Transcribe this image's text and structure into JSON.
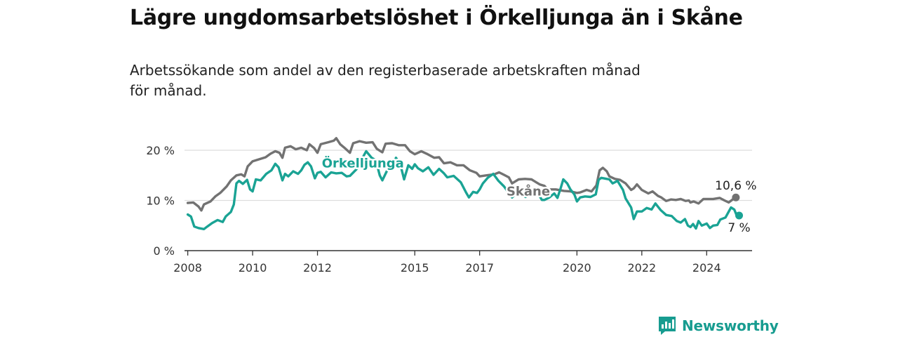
{
  "title": "Lägre ungdomsarbetslöshet i Örkelljunga än i Skåne",
  "subtitle": "Arbetssökande som andel av den registerbaserade arbetskraften månad för månad.",
  "brand": "Newsworthy",
  "colors": {
    "orkelljunga": "#1aa394",
    "skane": "#727272",
    "grid": "#dddddd",
    "axis": "#333333"
  },
  "chart_data": {
    "type": "line",
    "ylim": [
      0,
      20
    ],
    "xlim": [
      2007.9,
      2025.4
    ],
    "y_ticks": [
      {
        "v": 0,
        "label": "0 %"
      },
      {
        "v": 10,
        "label": "10 %"
      },
      {
        "v": 20,
        "label": "20 %"
      }
    ],
    "x_ticks": [
      {
        "v": 2008,
        "label": "2008"
      },
      {
        "v": 2010,
        "label": "2010"
      },
      {
        "v": 2012,
        "label": "2012"
      },
      {
        "v": 2015,
        "label": "2015"
      },
      {
        "v": 2017,
        "label": "2017"
      },
      {
        "v": 2020,
        "label": "2020"
      },
      {
        "v": 2022,
        "label": "2022"
      },
      {
        "v": 2024,
        "label": "2024"
      }
    ],
    "series": [
      {
        "key": "skane",
        "name": "Skåne",
        "label_at": [
          2018.5,
          11.8
        ],
        "end_label": "10,6 %",
        "points": [
          [
            2008.0,
            9.5
          ],
          [
            2008.17,
            9.6
          ],
          [
            2008.33,
            8.8
          ],
          [
            2008.42,
            8.0
          ],
          [
            2008.5,
            9.2
          ],
          [
            2008.7,
            9.8
          ],
          [
            2008.85,
            10.8
          ],
          [
            2009.0,
            11.5
          ],
          [
            2009.2,
            12.8
          ],
          [
            2009.33,
            14.0
          ],
          [
            2009.5,
            15.0
          ],
          [
            2009.65,
            15.2
          ],
          [
            2009.75,
            14.8
          ],
          [
            2009.85,
            16.8
          ],
          [
            2010.0,
            17.8
          ],
          [
            2010.2,
            18.2
          ],
          [
            2010.4,
            18.6
          ],
          [
            2010.55,
            19.3
          ],
          [
            2010.7,
            19.8
          ],
          [
            2010.83,
            19.5
          ],
          [
            2010.92,
            18.5
          ],
          [
            2011.0,
            20.5
          ],
          [
            2011.17,
            20.8
          ],
          [
            2011.33,
            20.2
          ],
          [
            2011.5,
            20.5
          ],
          [
            2011.67,
            20.0
          ],
          [
            2011.75,
            21.2
          ],
          [
            2011.9,
            20.4
          ],
          [
            2012.0,
            19.5
          ],
          [
            2012.1,
            21.2
          ],
          [
            2012.33,
            21.6
          ],
          [
            2012.5,
            21.9
          ],
          [
            2012.58,
            22.4
          ],
          [
            2012.7,
            21.2
          ],
          [
            2012.83,
            20.5
          ],
          [
            2013.0,
            19.5
          ],
          [
            2013.1,
            21.4
          ],
          [
            2013.3,
            21.8
          ],
          [
            2013.5,
            21.5
          ],
          [
            2013.7,
            21.6
          ],
          [
            2013.83,
            20.3
          ],
          [
            2014.0,
            19.6
          ],
          [
            2014.1,
            21.3
          ],
          [
            2014.3,
            21.4
          ],
          [
            2014.5,
            21.0
          ],
          [
            2014.7,
            21.0
          ],
          [
            2014.85,
            19.8
          ],
          [
            2015.0,
            19.2
          ],
          [
            2015.2,
            19.8
          ],
          [
            2015.4,
            19.2
          ],
          [
            2015.6,
            18.5
          ],
          [
            2015.75,
            18.6
          ],
          [
            2015.9,
            17.4
          ],
          [
            2016.1,
            17.6
          ],
          [
            2016.3,
            17.0
          ],
          [
            2016.5,
            17.0
          ],
          [
            2016.7,
            16.0
          ],
          [
            2016.9,
            15.5
          ],
          [
            2017.0,
            14.8
          ],
          [
            2017.2,
            15.0
          ],
          [
            2017.45,
            15.2
          ],
          [
            2017.6,
            15.6
          ],
          [
            2017.75,
            15.1
          ],
          [
            2017.9,
            14.6
          ],
          [
            2018.0,
            13.4
          ],
          [
            2018.2,
            14.2
          ],
          [
            2018.4,
            14.3
          ],
          [
            2018.6,
            14.2
          ],
          [
            2018.75,
            13.6
          ],
          [
            2018.85,
            13.2
          ],
          [
            2019.0,
            12.9
          ],
          [
            2019.1,
            12.2
          ],
          [
            2019.35,
            12.2
          ],
          [
            2019.6,
            11.9
          ],
          [
            2019.8,
            11.8
          ],
          [
            2020.0,
            11.5
          ],
          [
            2020.1,
            11.6
          ],
          [
            2020.3,
            12.1
          ],
          [
            2020.45,
            11.8
          ],
          [
            2020.6,
            13.0
          ],
          [
            2020.7,
            16.0
          ],
          [
            2020.8,
            16.5
          ],
          [
            2020.92,
            15.8
          ],
          [
            2021.0,
            14.8
          ],
          [
            2021.17,
            14.3
          ],
          [
            2021.33,
            14.1
          ],
          [
            2021.5,
            13.4
          ],
          [
            2021.67,
            12.1
          ],
          [
            2021.75,
            12.4
          ],
          [
            2021.85,
            13.2
          ],
          [
            2022.0,
            12.1
          ],
          [
            2022.2,
            11.4
          ],
          [
            2022.33,
            11.8
          ],
          [
            2022.5,
            10.9
          ],
          [
            2022.6,
            10.6
          ],
          [
            2022.75,
            9.9
          ],
          [
            2022.9,
            10.2
          ],
          [
            2023.05,
            10.1
          ],
          [
            2023.2,
            10.3
          ],
          [
            2023.35,
            9.9
          ],
          [
            2023.45,
            10.0
          ],
          [
            2023.5,
            9.6
          ],
          [
            2023.6,
            9.8
          ],
          [
            2023.75,
            9.4
          ],
          [
            2023.9,
            10.3
          ],
          [
            2024.0,
            10.3
          ],
          [
            2024.2,
            10.3
          ],
          [
            2024.4,
            10.5
          ],
          [
            2024.55,
            10.0
          ],
          [
            2024.68,
            9.6
          ],
          [
            2024.8,
            10.2
          ],
          [
            2024.9,
            10.6
          ]
        ]
      },
      {
        "key": "orkelljunga",
        "name": "Örkelljunga",
        "label_at": [
          2013.4,
          17.4
        ],
        "end_label": "7 %",
        "points": [
          [
            2008.0,
            7.2
          ],
          [
            2008.1,
            6.8
          ],
          [
            2008.2,
            4.8
          ],
          [
            2008.33,
            4.5
          ],
          [
            2008.5,
            4.3
          ],
          [
            2008.6,
            4.8
          ],
          [
            2008.75,
            5.5
          ],
          [
            2008.92,
            6.1
          ],
          [
            2009.08,
            5.7
          ],
          [
            2009.17,
            6.8
          ],
          [
            2009.33,
            7.7
          ],
          [
            2009.42,
            9.2
          ],
          [
            2009.5,
            13.4
          ],
          [
            2009.58,
            13.9
          ],
          [
            2009.7,
            13.3
          ],
          [
            2009.83,
            14.1
          ],
          [
            2009.92,
            12.2
          ],
          [
            2010.0,
            11.8
          ],
          [
            2010.1,
            14.2
          ],
          [
            2010.25,
            14.0
          ],
          [
            2010.42,
            15.3
          ],
          [
            2010.58,
            16.0
          ],
          [
            2010.7,
            17.3
          ],
          [
            2010.8,
            16.6
          ],
          [
            2010.92,
            14.0
          ],
          [
            2011.0,
            15.3
          ],
          [
            2011.1,
            14.8
          ],
          [
            2011.25,
            15.8
          ],
          [
            2011.4,
            15.3
          ],
          [
            2011.5,
            16.0
          ],
          [
            2011.6,
            17.1
          ],
          [
            2011.7,
            17.6
          ],
          [
            2011.8,
            16.8
          ],
          [
            2011.92,
            14.4
          ],
          [
            2012.0,
            15.5
          ],
          [
            2012.1,
            15.7
          ],
          [
            2012.25,
            14.6
          ],
          [
            2012.42,
            15.6
          ],
          [
            2012.58,
            15.4
          ],
          [
            2012.75,
            15.5
          ],
          [
            2012.9,
            14.8
          ],
          [
            2013.0,
            14.9
          ],
          [
            2013.2,
            16.2
          ],
          [
            2013.35,
            18.0
          ],
          [
            2013.5,
            19.8
          ],
          [
            2013.67,
            18.5
          ],
          [
            2013.8,
            18.0
          ],
          [
            2013.92,
            15.0
          ],
          [
            2014.0,
            14.0
          ],
          [
            2014.15,
            16.0
          ],
          [
            2014.3,
            16.6
          ],
          [
            2014.42,
            18.5
          ],
          [
            2014.55,
            17.3
          ],
          [
            2014.67,
            14.2
          ],
          [
            2014.8,
            17.0
          ],
          [
            2014.92,
            16.3
          ],
          [
            2015.0,
            17.2
          ],
          [
            2015.1,
            16.4
          ],
          [
            2015.25,
            15.8
          ],
          [
            2015.42,
            16.6
          ],
          [
            2015.58,
            15.1
          ],
          [
            2015.75,
            16.3
          ],
          [
            2015.9,
            15.4
          ],
          [
            2016.0,
            14.6
          ],
          [
            2016.2,
            14.9
          ],
          [
            2016.42,
            13.6
          ],
          [
            2016.58,
            11.6
          ],
          [
            2016.67,
            10.6
          ],
          [
            2016.8,
            11.7
          ],
          [
            2016.92,
            11.5
          ],
          [
            2017.0,
            12.2
          ],
          [
            2017.1,
            13.4
          ],
          [
            2017.25,
            14.5
          ],
          [
            2017.42,
            15.3
          ],
          [
            2017.58,
            13.9
          ],
          [
            2017.75,
            12.8
          ],
          [
            2017.9,
            11.5
          ],
          [
            2018.0,
            10.6
          ],
          [
            2018.1,
            11.2
          ],
          [
            2018.25,
            11.3
          ],
          [
            2018.42,
            10.7
          ],
          [
            2018.58,
            11.9
          ],
          [
            2018.7,
            12.3
          ],
          [
            2018.8,
            11.4
          ],
          [
            2018.92,
            10.1
          ],
          [
            2019.0,
            10.1
          ],
          [
            2019.15,
            10.6
          ],
          [
            2019.3,
            11.4
          ],
          [
            2019.4,
            10.5
          ],
          [
            2019.5,
            12.5
          ],
          [
            2019.58,
            14.2
          ],
          [
            2019.7,
            13.4
          ],
          [
            2019.8,
            12.2
          ],
          [
            2019.92,
            11.2
          ],
          [
            2020.0,
            9.8
          ],
          [
            2020.1,
            10.6
          ],
          [
            2020.25,
            10.8
          ],
          [
            2020.42,
            10.7
          ],
          [
            2020.58,
            11.2
          ],
          [
            2020.67,
            14.1
          ],
          [
            2020.75,
            14.5
          ],
          [
            2020.92,
            14.3
          ],
          [
            2021.0,
            14.2
          ],
          [
            2021.1,
            13.4
          ],
          [
            2021.25,
            13.9
          ],
          [
            2021.42,
            12.1
          ],
          [
            2021.5,
            10.4
          ],
          [
            2021.67,
            8.6
          ],
          [
            2021.75,
            6.3
          ],
          [
            2021.85,
            7.8
          ],
          [
            2022.0,
            7.8
          ],
          [
            2022.15,
            8.5
          ],
          [
            2022.3,
            8.2
          ],
          [
            2022.42,
            9.4
          ],
          [
            2022.58,
            8.1
          ],
          [
            2022.75,
            7.1
          ],
          [
            2022.92,
            6.9
          ],
          [
            2023.08,
            5.9
          ],
          [
            2023.2,
            5.6
          ],
          [
            2023.33,
            6.3
          ],
          [
            2023.42,
            5.0
          ],
          [
            2023.5,
            4.7
          ],
          [
            2023.58,
            5.3
          ],
          [
            2023.67,
            4.4
          ],
          [
            2023.75,
            5.9
          ],
          [
            2023.85,
            5.0
          ],
          [
            2024.0,
            5.4
          ],
          [
            2024.1,
            4.5
          ],
          [
            2024.2,
            5.0
          ],
          [
            2024.33,
            5.1
          ],
          [
            2024.42,
            6.2
          ],
          [
            2024.58,
            6.6
          ],
          [
            2024.75,
            8.6
          ],
          [
            2024.85,
            8.2
          ],
          [
            2024.92,
            7.1
          ],
          [
            2025.0,
            7.0
          ]
        ]
      }
    ]
  }
}
